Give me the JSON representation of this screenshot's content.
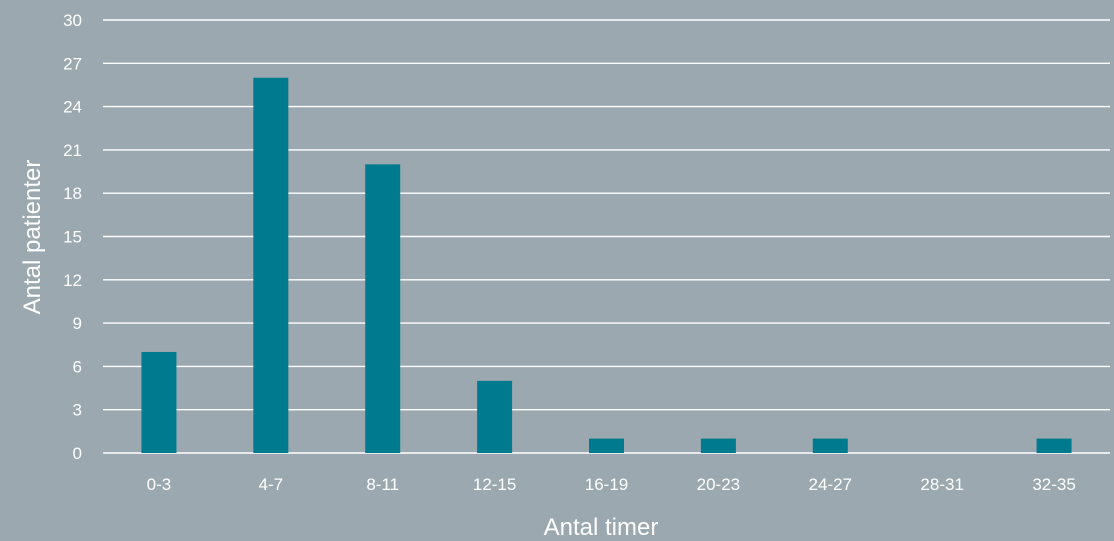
{
  "chart_data": {
    "type": "bar",
    "title": "",
    "xlabel": "Antal timer",
    "ylabel": "Antal patienter",
    "categories": [
      "0-3",
      "4-7",
      "8-11",
      "12-15",
      "16-19",
      "20-23",
      "24-27",
      "28-31",
      "32-35"
    ],
    "series": [
      {
        "values": [
          7,
          26,
          20,
          5,
          1,
          1,
          1,
          0,
          1
        ]
      }
    ],
    "ylim": [
      0,
      30
    ],
    "yticks": [
      0,
      3,
      6,
      9,
      12,
      15,
      18,
      21,
      24,
      27,
      30
    ],
    "grid": true,
    "legend": "none",
    "colors": {
      "bar": "#007a8e",
      "background": "#9ba8b0",
      "grid": "#ffffff",
      "text": "#ffffff"
    }
  }
}
